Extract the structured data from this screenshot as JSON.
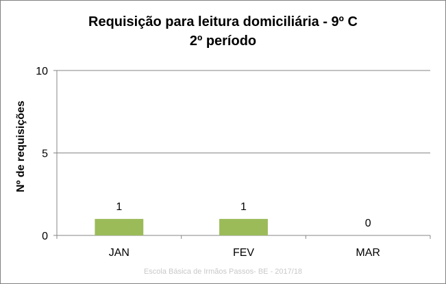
{
  "chart_data": {
    "type": "bar",
    "title": "Requisição para leitura domiciliária  - 9º C",
    "subtitle": "2º período",
    "xlabel": "",
    "ylabel": "Nº de requisições",
    "categories": [
      "JAN",
      "FEV",
      "MAR"
    ],
    "values": [
      1,
      1,
      0
    ],
    "data_labels": [
      "1",
      "1",
      "0"
    ],
    "ylim": [
      0,
      10
    ],
    "yticks": [
      0,
      5,
      10
    ],
    "grid": true,
    "bar_color": "#9bbb59"
  },
  "footer": "Escola Básica de Irmãos Passos- BE - 2017/18"
}
